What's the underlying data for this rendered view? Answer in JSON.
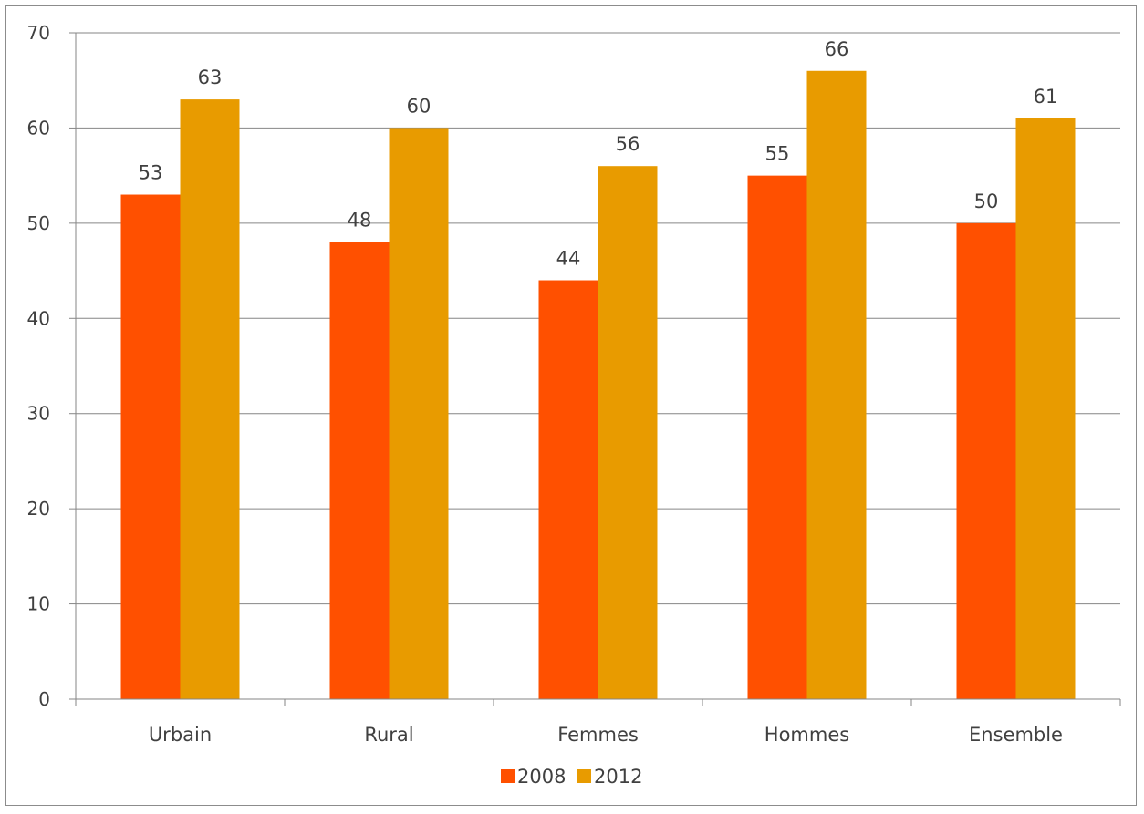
{
  "chart_data": {
    "type": "bar",
    "categories": [
      "Urbain",
      "Rural",
      "Femmes",
      "Hommes",
      "Ensemble"
    ],
    "series": [
      {
        "name": "2008",
        "values": [
          53,
          48,
          44,
          55,
          50
        ],
        "color": "#ff5000"
      },
      {
        "name": "2012",
        "values": [
          63,
          60,
          56,
          66,
          61
        ],
        "color": "#e89b00"
      }
    ],
    "ylim": [
      0,
      70
    ],
    "yticks": [
      "0",
      "10",
      "20",
      "30",
      "40",
      "50",
      "60",
      "70"
    ],
    "grid": true,
    "legend_position": "bottom",
    "data_labels": true,
    "title": "",
    "xlabel": "",
    "ylabel": ""
  }
}
